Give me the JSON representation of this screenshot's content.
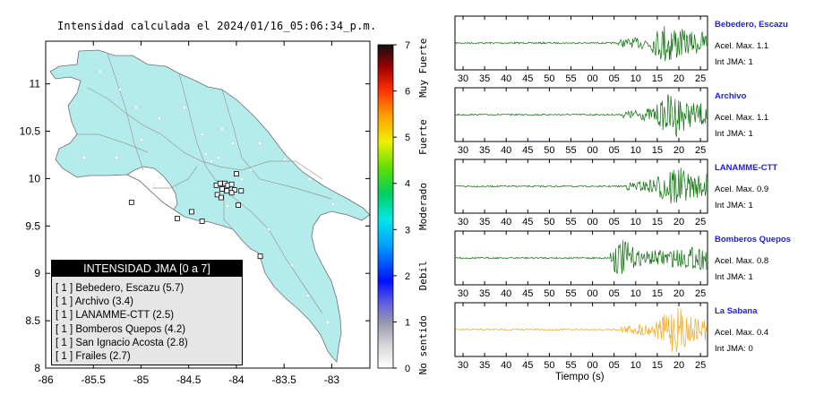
{
  "map": {
    "title": "Intensidad calculada el 2024/01/16_05:06:34_p.m.",
    "x_ticks": [
      "-86",
      "-85.5",
      "-85",
      "-84.5",
      "-84",
      "-83.5",
      "-83"
    ],
    "y_ticks": [
      "11",
      "10.5",
      "10",
      "9.5",
      "9",
      "8.5",
      "8"
    ],
    "land_color": "#b4ecec",
    "sea_color": "#ffffff",
    "stations": [
      {
        "lon": -84.21,
        "lat": 9.93
      },
      {
        "lon": -84.17,
        "lat": 9.95
      },
      {
        "lon": -84.12,
        "lat": 9.95
      },
      {
        "lon": -84.09,
        "lat": 9.93
      },
      {
        "lon": -84.05,
        "lat": 9.94
      },
      {
        "lon": -84.15,
        "lat": 9.89
      },
      {
        "lon": -84.02,
        "lat": 9.88
      },
      {
        "lon": -84.1,
        "lat": 9.87
      },
      {
        "lon": -84.05,
        "lat": 9.85
      },
      {
        "lon": -84.2,
        "lat": 9.83
      },
      {
        "lon": -84.16,
        "lat": 9.8
      },
      {
        "lon": -83.95,
        "lat": 9.87
      },
      {
        "lon": -83.98,
        "lat": 9.72
      },
      {
        "lon": -84.47,
        "lat": 9.65
      },
      {
        "lon": -84.36,
        "lat": 9.55
      },
      {
        "lon": -84.62,
        "lat": 9.58
      },
      {
        "lon": -84.0,
        "lat": 10.05
      },
      {
        "lon": -85.1,
        "lat": 9.75
      },
      {
        "lon": -83.75,
        "lat": 9.18
      }
    ]
  },
  "legend": {
    "header": "INTENSIDAD JMA [0 a 7]",
    "items": [
      "[ 1 ]  Bebedero, Escazu (5.7)",
      "[ 1 ]  Archivo (3.4)",
      "[ 1 ]  LANAMME-CTT (2.5)",
      "[ 1 ]  Bomberos Quepos (4.2)",
      "[ 1 ]  San Ignacio Acosta (2.8)",
      "[ 1 ]  Frailes (2.7)"
    ]
  },
  "colorbar": {
    "ticks": [
      "0",
      "1",
      "2",
      "3",
      "4",
      "5",
      "6",
      "7"
    ],
    "category_labels": [
      "No sentido",
      "Debil",
      "Moderado",
      "Fuerte",
      "Muy Fuerte"
    ]
  },
  "traces": {
    "x_ticks": [
      "30",
      "35",
      "40",
      "45",
      "50",
      "55",
      "00",
      "05",
      "10",
      "15",
      "20",
      "25"
    ],
    "x_label": "Tiempo (s)",
    "stations": [
      {
        "name": "Bebedero, Escazu",
        "acel": "Acel. Max. 1.1",
        "int": "Int JMA: 1",
        "color": "#0a6e0a",
        "onset_index": 7.2,
        "peak_index": 9.5
      },
      {
        "name": "Archivo",
        "acel": "Acel. Max. 1.1",
        "int": "Int JMA: 1",
        "color": "#0a6e0a",
        "onset_index": 7.4,
        "peak_index": 9.7
      },
      {
        "name": "LANAMME-CTT",
        "acel": "Acel. Max. 0.9",
        "int": "Int JMA: 1",
        "color": "#0a6e0a",
        "onset_index": 7.5,
        "peak_index": 9.7
      },
      {
        "name": "Bomberos Quepos",
        "acel": "Acel. Max. 0.8",
        "int": "Int JMA: 1",
        "color": "#0a6e0a",
        "onset_index": 6.8,
        "peak_index": 7.3
      },
      {
        "name": "La Sabana",
        "acel": "Acel. Max. 0.4",
        "int": "Int JMA: 0",
        "color": "#f0a81e",
        "onset_index": 7.3,
        "peak_index": 9.8
      }
    ]
  }
}
